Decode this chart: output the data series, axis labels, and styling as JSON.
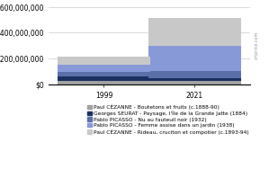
{
  "categories": [
    "1999",
    "2021"
  ],
  "series": [
    {
      "label": "Paul CÉZANNE - Boutetons et fruits (c.1888-90)",
      "color": "#a0a0a0",
      "values": [
        30000000,
        25000000
      ]
    },
    {
      "label": "Georges SEURAT - Paysage, l'île de la Grande Jatte (1884)",
      "color": "#1a3060",
      "values": [
        30000000,
        25000000
      ]
    },
    {
      "label": "Pablo PICASSO - Nu au fauteuil noir (1932)",
      "color": "#5b6fa8",
      "values": [
        35000000,
        55000000
      ]
    },
    {
      "label": "Pablo PICASSO - Femme assise dans un jardin (1938)",
      "color": "#8899d8",
      "values": [
        60000000,
        195000000
      ]
    },
    {
      "label": "Paul CÉZANNE - Rideau, cruciton et compotier (c.1893-94)",
      "color": "#c8c8c8",
      "values": [
        60000000,
        215000000
      ]
    }
  ],
  "ylim": [
    0,
    600000000
  ],
  "yticks": [
    0,
    200000000,
    400000000,
    600000000
  ],
  "ytick_labels": [
    "$0",
    "$200,000,000",
    "$400,000,000",
    "$600,000,000"
  ],
  "background_color": "#ffffff",
  "grid_color": "#cccccc",
  "bar_width": 0.55,
  "legend_fontsize": 4.2,
  "tick_fontsize": 5.5,
  "watermark": "artprice.com"
}
